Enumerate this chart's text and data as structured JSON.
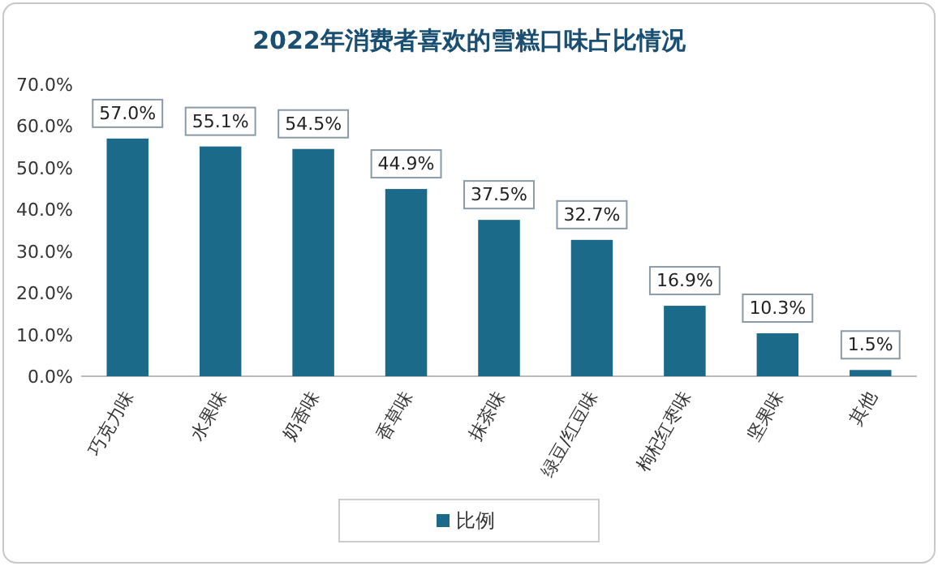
{
  "chart_data": {
    "type": "bar",
    "title": "2022年消费者喜欢的雪糕口味占比情况",
    "categories": [
      "巧克力味",
      "水果味",
      "奶香味",
      "香草味",
      "抹茶味",
      "绿豆/红豆味",
      "枸杞红枣味",
      "坚果味",
      "其他"
    ],
    "series": [
      {
        "name": "比例",
        "color": "#1b6a8a",
        "values": [
          57.0,
          55.1,
          54.5,
          44.9,
          37.5,
          32.7,
          16.9,
          10.3,
          1.5
        ],
        "value_labels": [
          "57.0%",
          "55.1%",
          "54.5%",
          "44.9%",
          "37.5%",
          "32.7%",
          "16.9%",
          "10.3%",
          "1.5%"
        ]
      }
    ],
    "ylim": [
      0,
      70
    ],
    "yticks": [
      {
        "value": 0,
        "label": "0.0%"
      },
      {
        "value": 10,
        "label": "10.0%"
      },
      {
        "value": 20,
        "label": "20.0%"
      },
      {
        "value": 30,
        "label": "30.0%"
      },
      {
        "value": 40,
        "label": "40.0%"
      },
      {
        "value": 50,
        "label": "50.0%"
      },
      {
        "value": 60,
        "label": "60.0%"
      },
      {
        "value": 70,
        "label": "70.0%"
      }
    ],
    "legend": "bottom"
  }
}
